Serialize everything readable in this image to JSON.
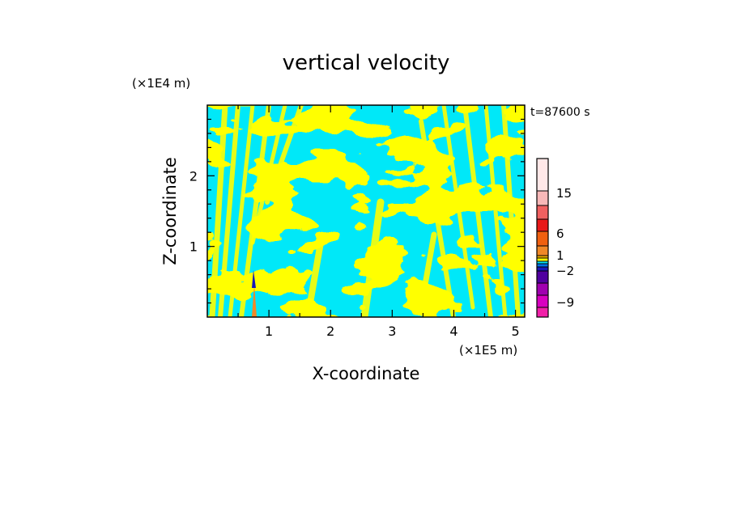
{
  "chart_data": {
    "type": "heatmap",
    "title": "vertical velocity",
    "xlabel": "X-coordinate",
    "ylabel": "Z-coordinate",
    "x_unit": "(×1E5 m)",
    "y_unit": "(×1E4 m)",
    "time_label": "t=87600 s",
    "xlim": [
      0,
      5.15
    ],
    "ylim": [
      0,
      3.0
    ],
    "x_ticks": [
      "1",
      "2",
      "3",
      "4",
      "5"
    ],
    "y_ticks": [
      "1",
      "2"
    ],
    "field_colors": {
      "positive": "#ffff00",
      "negative": "#00e8f8"
    },
    "colorbar": {
      "tick_labels": [
        "15",
        "6",
        "1",
        "−2",
        "−9"
      ],
      "levels": [
        {
          "color": "#ffe8e8"
        },
        {
          "color": "#f8b8b8"
        },
        {
          "color": "#f06060"
        },
        {
          "color": "#e81818"
        },
        {
          "color": "#f06010"
        },
        {
          "color": "#f08828"
        },
        {
          "color": "#f8b000"
        },
        {
          "color": "#ffff00"
        },
        {
          "color": "#00e8f8"
        },
        {
          "color": "#0070e8"
        },
        {
          "color": "#1818b8"
        },
        {
          "color": "#5000a0"
        },
        {
          "color": "#a000b0"
        },
        {
          "color": "#d800c0"
        },
        {
          "color": "#f020a8"
        }
      ]
    }
  }
}
